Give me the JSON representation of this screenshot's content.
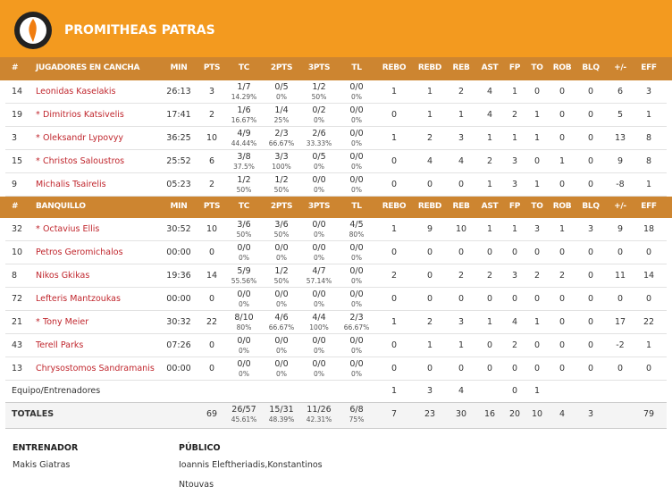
{
  "header": {
    "title": "PROMITHEAS PATRAS"
  },
  "sections": [
    {
      "number_label": "#",
      "title": "JUGADORES EN CANCHA",
      "columns": [
        "MIN",
        "PTS",
        "TC",
        "2PTS",
        "3PTS",
        "TL",
        "REBO",
        "REBD",
        "REB",
        "AST",
        "FP",
        "TO",
        "ROB",
        "BLQ",
        "+/-",
        "EFF"
      ],
      "rows": [
        {
          "number": 14,
          "name": "Leonidas Kaselakis",
          "stats": [
            "26:13",
            3,
            [
              "1/7",
              "14.29%"
            ],
            [
              "0/5",
              "0%"
            ],
            [
              "1/2",
              "50%"
            ],
            [
              "0/0",
              "0%"
            ],
            1,
            1,
            2,
            4,
            1,
            0,
            0,
            0,
            6,
            3
          ]
        },
        {
          "number": 19,
          "mark": "*",
          "name": "Dimitrios Katsivelis",
          "stats": [
            "17:41",
            2,
            [
              "1/6",
              "16.67%"
            ],
            [
              "1/4",
              "25%"
            ],
            [
              "0/2",
              "0%"
            ],
            [
              "0/0",
              "0%"
            ],
            0,
            1,
            1,
            4,
            2,
            1,
            0,
            0,
            5,
            1
          ]
        },
        {
          "number": 3,
          "mark": "*",
          "name": "Oleksandr Lypovyy",
          "stats": [
            "36:25",
            10,
            [
              "4/9",
              "44.44%"
            ],
            [
              "2/3",
              "66.67%"
            ],
            [
              "2/6",
              "33.33%"
            ],
            [
              "0/0",
              "0%"
            ],
            1,
            2,
            3,
            1,
            1,
            1,
            0,
            0,
            13,
            8
          ]
        },
        {
          "number": 15,
          "mark": "*",
          "name": "Christos Saloustros",
          "stats": [
            "25:52",
            6,
            [
              "3/8",
              "37.5%"
            ],
            [
              "3/3",
              "100%"
            ],
            [
              "0/5",
              "0%"
            ],
            [
              "0/0",
              "0%"
            ],
            0,
            4,
            4,
            2,
            3,
            0,
            1,
            0,
            9,
            8
          ]
        },
        {
          "number": 9,
          "name": "Michalis Tsairelis",
          "stats": [
            "05:23",
            2,
            [
              "1/2",
              "50%"
            ],
            [
              "1/2",
              "50%"
            ],
            [
              "0/0",
              "0%"
            ],
            [
              "0/0",
              "0%"
            ],
            0,
            0,
            0,
            1,
            3,
            1,
            0,
            0,
            -8,
            1
          ]
        }
      ]
    },
    {
      "number_label": "#",
      "title": "BANQUILLO",
      "columns": [
        "MIN",
        "PTS",
        "TC",
        "2PTS",
        "3PTS",
        "TL",
        "REBO",
        "REBD",
        "REB",
        "AST",
        "FP",
        "TO",
        "ROB",
        "BLQ",
        "+/-",
        "EFF"
      ],
      "rows": [
        {
          "number": 32,
          "mark": "*",
          "name": "Octavius Ellis",
          "stats": [
            "30:52",
            10,
            [
              "3/6",
              "50%"
            ],
            [
              "3/6",
              "50%"
            ],
            [
              "0/0",
              "0%"
            ],
            [
              "4/5",
              "80%"
            ],
            1,
            9,
            10,
            1,
            1,
            3,
            1,
            3,
            9,
            18
          ]
        },
        {
          "number": 10,
          "name": "Petros Geromichalos",
          "stats": [
            "00:00",
            0,
            [
              "0/0",
              "0%"
            ],
            [
              "0/0",
              "0%"
            ],
            [
              "0/0",
              "0%"
            ],
            [
              "0/0",
              "0%"
            ],
            0,
            0,
            0,
            0,
            0,
            0,
            0,
            0,
            0,
            0
          ]
        },
        {
          "number": 8,
          "name": "Nikos Gkikas",
          "stats": [
            "19:36",
            14,
            [
              "5/9",
              "55.56%"
            ],
            [
              "1/2",
              "50%"
            ],
            [
              "4/7",
              "57.14%"
            ],
            [
              "0/0",
              "0%"
            ],
            2,
            0,
            2,
            2,
            3,
            2,
            2,
            0,
            11,
            14
          ]
        },
        {
          "number": 72,
          "name": "Lefteris Mantzoukas",
          "stats": [
            "00:00",
            0,
            [
              "0/0",
              "0%"
            ],
            [
              "0/0",
              "0%"
            ],
            [
              "0/0",
              "0%"
            ],
            [
              "0/0",
              "0%"
            ],
            0,
            0,
            0,
            0,
            0,
            0,
            0,
            0,
            0,
            0
          ]
        },
        {
          "number": 21,
          "mark": "*",
          "name": "Tony Meier",
          "stats": [
            "30:32",
            22,
            [
              "8/10",
              "80%"
            ],
            [
              "4/6",
              "66.67%"
            ],
            [
              "4/4",
              "100%"
            ],
            [
              "2/3",
              "66.67%"
            ],
            1,
            2,
            3,
            1,
            4,
            1,
            0,
            0,
            17,
            22
          ]
        },
        {
          "number": 43,
          "name": "Terell Parks",
          "stats": [
            "07:26",
            0,
            [
              "0/0",
              "0%"
            ],
            [
              "0/0",
              "0%"
            ],
            [
              "0/0",
              "0%"
            ],
            [
              "0/0",
              "0%"
            ],
            0,
            1,
            1,
            0,
            2,
            0,
            0,
            0,
            -2,
            1
          ]
        },
        {
          "number": 13,
          "name": "Chrysostomos Sandramanis",
          "stats": [
            "00:00",
            0,
            [
              "0/0",
              "0%"
            ],
            [
              "0/0",
              "0%"
            ],
            [
              "0/0",
              "0%"
            ],
            [
              "0/0",
              "0%"
            ],
            0,
            0,
            0,
            0,
            0,
            0,
            0,
            0,
            0,
            0
          ]
        }
      ]
    }
  ],
  "team": {
    "name": "Equipo/Entrenadores",
    "stats": [
      null,
      null,
      null,
      null,
      null,
      null,
      1,
      3,
      4,
      null,
      0,
      1,
      null,
      null,
      null,
      null
    ]
  },
  "totals": {
    "name": "TOTALES",
    "stats": [
      null,
      69,
      [
        "26/57",
        "45.61%"
      ],
      [
        "15/31",
        "48.39%"
      ],
      [
        "11/26",
        "42.31%"
      ],
      [
        "6/8",
        "75%"
      ],
      7,
      23,
      30,
      16,
      20,
      10,
      4,
      3,
      null,
      79
    ]
  },
  "footer": {
    "coach_label": "ENTRENADOR",
    "coach": "Makis Giatras",
    "public_label": "PÚBLICO",
    "public": "Ioannis Eleftheriadis,Konstantinos Ntouvas"
  }
}
